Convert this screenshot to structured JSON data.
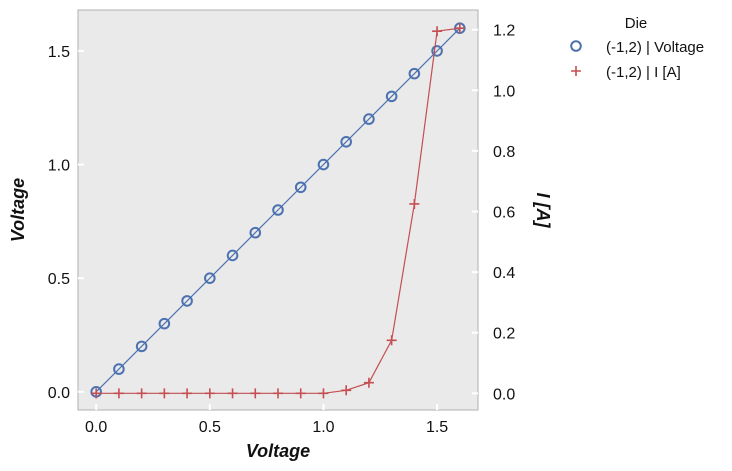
{
  "chart_data": {
    "type": "line",
    "x": [
      0.0,
      0.1,
      0.2,
      0.3,
      0.4,
      0.5,
      0.6,
      0.7,
      0.8,
      0.9,
      1.0,
      1.1,
      1.2,
      1.3,
      1.4,
      1.5,
      1.6
    ],
    "xlabel": "Voltage",
    "xlim": [
      -0.08,
      1.68
    ],
    "xticks": [
      "0.0",
      "0.5",
      "1.0",
      "1.5"
    ],
    "ylabel_left": "Voltage",
    "ylim_left": [
      -0.08,
      1.68
    ],
    "yticks_left": [
      "0.0",
      "0.5",
      "1.0",
      "1.5"
    ],
    "ylabel_right": "I [A]",
    "ylim_right": [
      -0.055,
      1.265
    ],
    "yticks_right": [
      "0.0",
      "0.2",
      "0.4",
      "0.6",
      "0.8",
      "1.0",
      "1.2"
    ],
    "series": [
      {
        "name": "(-1,2) | Voltage",
        "axis": "left",
        "marker": "circle",
        "color": "#4c72b0",
        "values": [
          0.0,
          0.1,
          0.2,
          0.3,
          0.4,
          0.5,
          0.6,
          0.7,
          0.8,
          0.9,
          1.0,
          1.1,
          1.2,
          1.3,
          1.4,
          1.5,
          1.6
        ]
      },
      {
        "name": "(-1,2) | I [A]",
        "axis": "right",
        "marker": "plus",
        "color": "#c44e52",
        "values": [
          0.0,
          0.0,
          0.0,
          0.0,
          0.0,
          0.0,
          0.0,
          0.0,
          0.0,
          0.0,
          0.0,
          0.01,
          0.035,
          0.175,
          0.625,
          1.195,
          1.205
        ]
      }
    ],
    "legend": {
      "title": "Die",
      "placement": "outside-right-top"
    },
    "grid": false,
    "background": "#eaeaea"
  }
}
